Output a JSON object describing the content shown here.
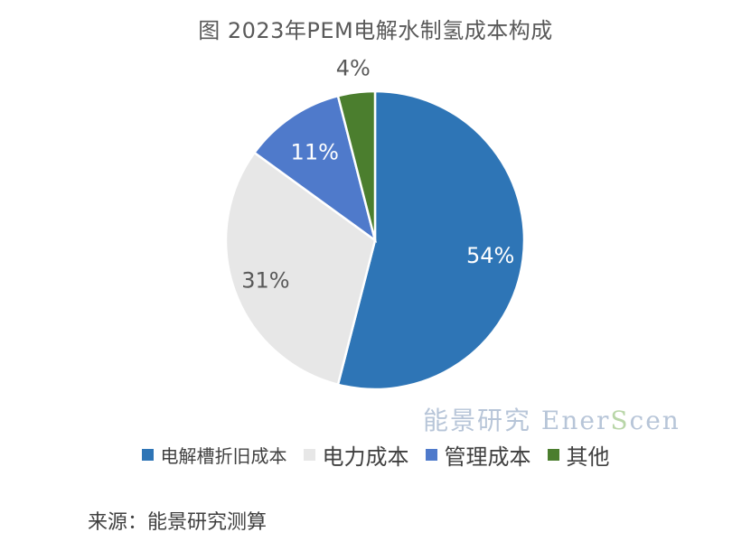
{
  "chart_data": {
    "type": "pie",
    "title": "图  2023年PEM电解水制氢成本构成",
    "slices": [
      {
        "name": "电解槽折旧成本",
        "value": 54,
        "label": "54%",
        "color": "#2e75b6"
      },
      {
        "name": "电力成本",
        "value": 31,
        "label": "31%",
        "color": "#e7e7e7"
      },
      {
        "name": "管理成本",
        "value": 11,
        "label": "11%",
        "color": "#4f7acb"
      },
      {
        "name": "其他",
        "value": 4,
        "label": "4%",
        "color": "#4b7e2e"
      }
    ],
    "legend_position": "bottom"
  },
  "watermark": {
    "cn": "能景研究 ",
    "en1": "Ener",
    "en2": "S",
    "en3": "cen"
  },
  "source": "来源：能景研究测算"
}
